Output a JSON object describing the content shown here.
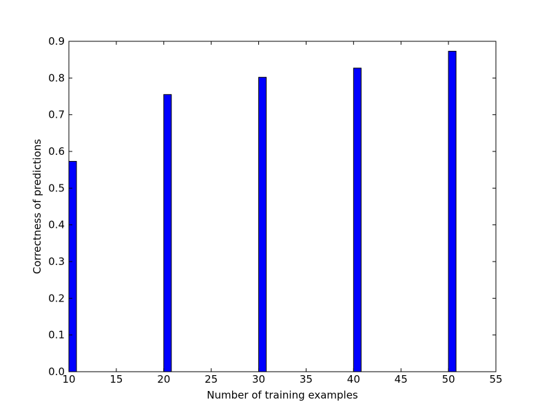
{
  "chart_data": {
    "type": "bar",
    "xlabel": "Number of training examples",
    "ylabel": "Correctness of predictions",
    "xlim": [
      10,
      55
    ],
    "ylim": [
      0,
      0.9
    ],
    "x_ticks": [
      "10",
      "15",
      "20",
      "25",
      "30",
      "35",
      "40",
      "45",
      "50",
      "55"
    ],
    "y_ticks": [
      "0.0",
      "0.1",
      "0.2",
      "0.3",
      "0.4",
      "0.5",
      "0.6",
      "0.7",
      "0.8",
      "0.9"
    ],
    "bar_width": 0.8,
    "grid": false,
    "bar_color": "#0000ff",
    "edge_color": "#000000",
    "x": [
      10,
      20,
      30,
      40,
      50
    ],
    "values": [
      0.573,
      0.755,
      0.802,
      0.827,
      0.873
    ]
  }
}
